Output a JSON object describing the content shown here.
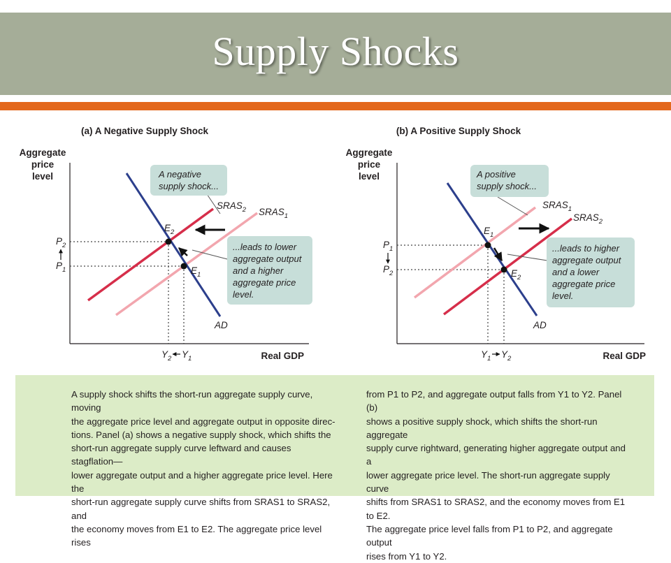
{
  "slide": {
    "title": "Supply Shocks"
  },
  "panel_a": {
    "title": "(a) A Negative Supply Shock",
    "y_axis_label": [
      "Aggregate",
      "price",
      "level"
    ],
    "x_axis_label": "Real GDP",
    "curves": {
      "sras2": "SRAS",
      "sras2_sub": "2",
      "sras1": "SRAS",
      "sras1_sub": "1",
      "ad": "AD"
    },
    "points": {
      "e2": "E",
      "e2_sub": "2",
      "e1": "E",
      "e1_sub": "1"
    },
    "price_ticks": {
      "p2": "P",
      "p2_sub": "2",
      "p1": "P",
      "p1_sub": "1"
    },
    "output_ticks": {
      "y2": "Y",
      "y2_sub": "2",
      "y1": "Y",
      "y1_sub": "1"
    },
    "callout_top": [
      "A negative",
      "supply shock..."
    ],
    "callout_side": [
      "...leads to lower",
      "aggregate output",
      "and a higher",
      "aggregate price",
      "level."
    ]
  },
  "panel_b": {
    "title": "(b) A Positive Supply Shock",
    "y_axis_label": [
      "Aggregate",
      "price",
      "level"
    ],
    "x_axis_label": "Real GDP",
    "curves": {
      "sras1": "SRAS",
      "sras1_sub": "1",
      "sras2": "SRAS",
      "sras2_sub": "2",
      "ad": "AD"
    },
    "points": {
      "e1": "E",
      "e1_sub": "1",
      "e2": "E",
      "e2_sub": "2"
    },
    "price_ticks": {
      "p1": "P",
      "p1_sub": "1",
      "p2": "P",
      "p2_sub": "2"
    },
    "output_ticks": {
      "y1": "Y",
      "y1_sub": "1",
      "y2": "Y",
      "y2_sub": "2"
    },
    "callout_top": [
      "A positive",
      "supply shock..."
    ],
    "callout_side": [
      "...leads to higher",
      "aggregate output",
      "and a lower",
      "aggregate price",
      "level."
    ]
  },
  "caption": {
    "left_lines": [
      "A supply shock shifts the short-run aggregate supply curve, moving",
      "the aggregate price level and aggregate output in opposite direc-",
      "tions. Panel (a) shows a negative supply shock, which shifts the",
      "short-run aggregate supply curve leftward and causes stagflation—",
      "lower aggregate output and a higher aggregate price level. Here the",
      "short-run aggregate supply curve shifts from SRAS1 to SRAS2, and",
      "the economy moves from E1 to E2. The aggregate price level rises"
    ],
    "right_lines": [
      "from P1 to P2, and aggregate output falls from Y1 to Y2. Panel (b)",
      "shows a positive supply shock, which shifts the short-run aggregate",
      "supply curve rightward, generating higher aggregate output and a",
      "lower aggregate price level. The short-run aggregate supply curve",
      "shifts from SRAS1 to SRAS2, and the economy moves from E1 to E2.",
      "The aggregate price level falls from P1 to P2, and aggregate output",
      "rises from Y1 to Y2."
    ]
  },
  "colors": {
    "title_band": "#a5ad98",
    "orange_rule": "#e3681c",
    "ad": "#2c3f8c",
    "sras_new": "#d62e4a",
    "sras_old": "#f2a6ae",
    "callout": "#c7ded9",
    "caption_bg": "#dcecc7"
  }
}
